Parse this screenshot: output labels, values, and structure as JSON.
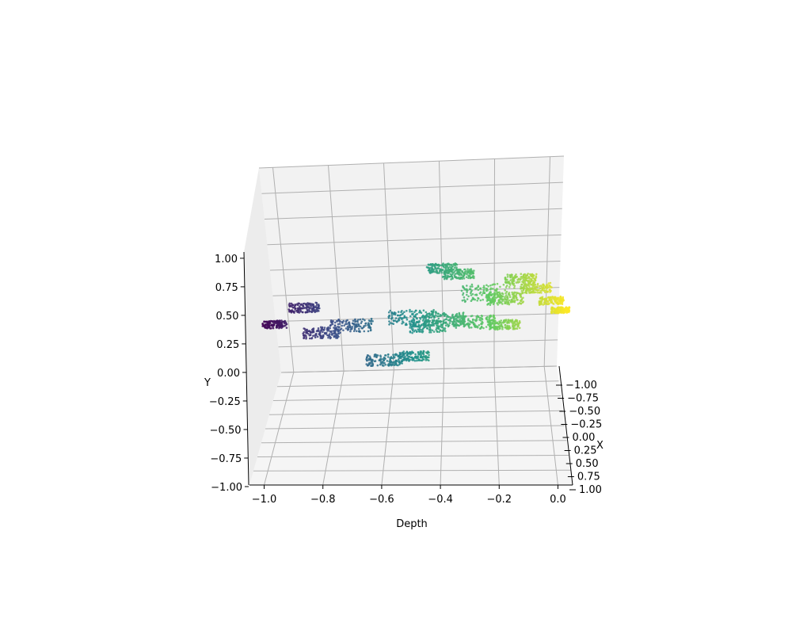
{
  "chart_data": {
    "type": "scatter",
    "projection": "3d",
    "title": "",
    "xlabel": "X",
    "ylabel": "Y",
    "zlabel": "Depth",
    "xlim": [
      -1.0,
      1.0
    ],
    "ylim": [
      -1.0,
      1.0
    ],
    "zlim": [
      -1.0,
      0.0
    ],
    "x_ticks": [
      "−1.00",
      "−0.75",
      "−0.50",
      "−0.25",
      "0.00",
      "0.25",
      "0.50",
      "0.75",
      "1.00"
    ],
    "y_ticks": [
      "−1.00",
      "−0.75",
      "−0.50",
      "−0.25",
      "0.00",
      "0.25",
      "0.50",
      "0.75",
      "1.00"
    ],
    "z_ticks": [
      "−1.0",
      "−0.8",
      "−0.6",
      "−0.4",
      "−0.2",
      "0.0"
    ],
    "grid": true,
    "colormap": "viridis",
    "color_by": "Depth",
    "clusters": [
      {
        "depth": -0.95,
        "y": 0.25,
        "spread": 0.04
      },
      {
        "depth": -0.85,
        "y": 0.5,
        "spread": 0.05
      },
      {
        "depth": -0.8,
        "y": 0.1,
        "spread": 0.06
      },
      {
        "depth": -0.7,
        "y": 0.2,
        "spread": 0.07
      },
      {
        "depth": -0.6,
        "y": -0.35,
        "spread": 0.06
      },
      {
        "depth": -0.5,
        "y": -0.3,
        "spread": 0.05
      },
      {
        "depth": -0.5,
        "y": 0.3,
        "spread": 0.08
      },
      {
        "depth": -0.45,
        "y": 0.15,
        "spread": 0.06
      },
      {
        "depth": -0.4,
        "y": 0.25,
        "spread": 0.07
      },
      {
        "depth": -0.3,
        "y": 0.2,
        "spread": 0.07
      },
      {
        "depth": -0.25,
        "y": 0.65,
        "spread": 0.09
      },
      {
        "depth": -0.4,
        "y": 1.05,
        "spread": 0.05
      },
      {
        "depth": -0.35,
        "y": 0.95,
        "spread": 0.05
      },
      {
        "depth": -0.2,
        "y": 0.55,
        "spread": 0.06
      },
      {
        "depth": -0.15,
        "y": 0.85,
        "spread": 0.05
      },
      {
        "depth": -0.1,
        "y": 0.7,
        "spread": 0.05
      },
      {
        "depth": -0.05,
        "y": 0.5,
        "spread": 0.04
      },
      {
        "depth": -0.02,
        "y": 0.35,
        "spread": 0.03
      },
      {
        "depth": -0.2,
        "y": 0.15,
        "spread": 0.05
      }
    ],
    "colors": {
      "pane_fill": "#f2f2f2",
      "grid": "#b0b0b0",
      "axis": "#000000",
      "cmap": [
        "#440154",
        "#3b528b",
        "#21918c",
        "#5ec962",
        "#fde725"
      ]
    }
  }
}
